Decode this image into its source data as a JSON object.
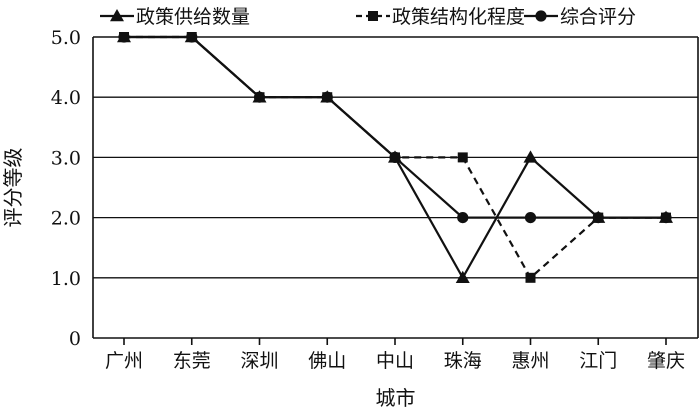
{
  "chart_data": {
    "type": "line",
    "xlabel": "城市",
    "ylabel": "评分等级",
    "categories": [
      "广州",
      "东莞",
      "深圳",
      "佛山",
      "中山",
      "珠海",
      "惠州",
      "江门",
      "肇庆"
    ],
    "ylim": [
      0,
      5
    ],
    "yticks": [
      "0",
      "1.0",
      "2.0",
      "3.0",
      "4.0",
      "5.0"
    ],
    "grid": "horizontal",
    "legend_position": "top",
    "series": [
      {
        "name": "政策供给数量",
        "marker": "triangle",
        "line": "solid",
        "color": "#111111",
        "values": [
          5,
          5,
          4,
          4,
          3,
          1,
          3,
          2,
          2
        ]
      },
      {
        "name": "政策结构化程度",
        "marker": "square",
        "line": "dashed",
        "color": "#111111",
        "values": [
          5,
          5,
          4,
          4,
          3,
          3,
          1,
          2,
          2
        ]
      },
      {
        "name": "综合评分",
        "marker": "circle",
        "line": "solid",
        "color": "#111111",
        "values": [
          5,
          5,
          4,
          4,
          3,
          2,
          2,
          2,
          2
        ]
      }
    ]
  }
}
